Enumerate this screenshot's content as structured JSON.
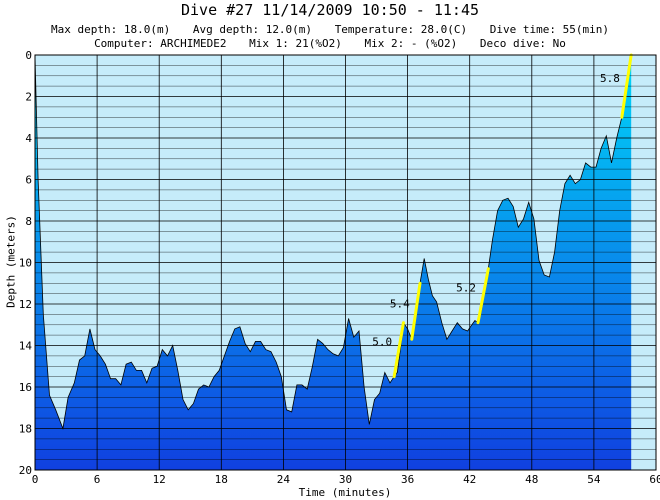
{
  "header": {
    "title": "Dive #27  11/14/2009  10:50 - 11:45",
    "max_depth": "Max depth: 18.0(m)",
    "avg_depth": "Avg depth: 12.0(m)",
    "temperature": "Temperature: 28.0(C)",
    "dive_time": "Dive time: 55(min)",
    "computer": "Computer: ARCHIMEDE2",
    "mix1": "Mix 1: 21(%O2)",
    "mix2": "Mix 2: - (%O2)",
    "deco": "Deco dive:  No"
  },
  "chart_data": {
    "type": "area",
    "xlabel": "Time (minutes)",
    "ylabel": "Depth (meters)",
    "xlim": [
      0,
      60
    ],
    "ylim": [
      0,
      20
    ],
    "y_inverted": true,
    "xticks": [
      0,
      6,
      12,
      18,
      24,
      30,
      36,
      42,
      48,
      54,
      60
    ],
    "yticks": [
      0,
      2,
      4,
      6,
      8,
      10,
      12,
      14,
      16,
      18,
      20
    ],
    "grid": true,
    "colors": {
      "background": "#c6ecfa",
      "profile_top": "#00d8f8",
      "profile_bottom": "#1040e0",
      "ascent_warning": "#ffff00",
      "grid": "#000000"
    },
    "profile": [
      [
        0,
        0
      ],
      [
        0.3,
        6
      ],
      [
        0.8,
        12.5
      ],
      [
        1.4,
        16.4
      ],
      [
        2,
        17.1
      ],
      [
        2.7,
        18
      ],
      [
        3.2,
        16.5
      ],
      [
        3.8,
        15.8
      ],
      [
        4.3,
        14.7
      ],
      [
        4.8,
        14.5
      ],
      [
        5.3,
        13.2
      ],
      [
        5.8,
        14.2
      ],
      [
        6.3,
        14.5
      ],
      [
        6.8,
        14.9
      ],
      [
        7.3,
        15.6
      ],
      [
        7.8,
        15.6
      ],
      [
        8.3,
        15.9
      ],
      [
        8.8,
        14.9
      ],
      [
        9.3,
        14.8
      ],
      [
        9.8,
        15.2
      ],
      [
        10.3,
        15.2
      ],
      [
        10.8,
        15.8
      ],
      [
        11.3,
        15.1
      ],
      [
        11.8,
        15
      ],
      [
        12.3,
        14.2
      ],
      [
        12.8,
        14.5
      ],
      [
        13.3,
        14
      ],
      [
        13.8,
        15.2
      ],
      [
        14.3,
        16.6
      ],
      [
        14.8,
        17.1
      ],
      [
        15.3,
        16.8
      ],
      [
        15.8,
        16.1
      ],
      [
        16.3,
        15.9
      ],
      [
        16.8,
        16
      ],
      [
        17.3,
        15.5
      ],
      [
        17.8,
        15.2
      ],
      [
        18.3,
        14.5
      ],
      [
        18.8,
        13.8
      ],
      [
        19.3,
        13.2
      ],
      [
        19.8,
        13.1
      ],
      [
        20.3,
        13.9
      ],
      [
        20.8,
        14.3
      ],
      [
        21.3,
        13.8
      ],
      [
        21.8,
        13.8
      ],
      [
        22.3,
        14.2
      ],
      [
        22.8,
        14.3
      ],
      [
        23.3,
        14.8
      ],
      [
        23.8,
        15.5
      ],
      [
        24.3,
        17.1
      ],
      [
        24.8,
        17.2
      ],
      [
        25.3,
        15.9
      ],
      [
        25.8,
        15.9
      ],
      [
        26.3,
        16.1
      ],
      [
        26.8,
        15
      ],
      [
        27.3,
        13.7
      ],
      [
        27.8,
        13.9
      ],
      [
        28.3,
        14.2
      ],
      [
        28.8,
        14.4
      ],
      [
        29.3,
        14.5
      ],
      [
        29.8,
        14.1
      ],
      [
        30.3,
        12.7
      ],
      [
        30.8,
        13.6
      ],
      [
        31.3,
        13.3
      ],
      [
        31.8,
        16
      ],
      [
        32.3,
        17.8
      ],
      [
        32.8,
        16.6
      ],
      [
        33.3,
        16.3
      ],
      [
        33.8,
        15.3
      ],
      [
        34.3,
        15.8
      ],
      [
        34.7,
        15.5
      ],
      [
        35,
        15.3
      ],
      [
        35.3,
        14.2
      ],
      [
        35.6,
        12.9
      ],
      [
        36,
        13.2
      ],
      [
        36.4,
        13.7
      ],
      [
        36.8,
        12.5
      ],
      [
        37.2,
        11
      ],
      [
        37.6,
        9.8
      ],
      [
        38,
        10.8
      ],
      [
        38.4,
        11.6
      ],
      [
        38.8,
        11.9
      ],
      [
        39.3,
        12.9
      ],
      [
        39.8,
        13.7
      ],
      [
        40.3,
        13.3
      ],
      [
        40.8,
        12.9
      ],
      [
        41.3,
        13.2
      ],
      [
        41.8,
        13.3
      ],
      [
        42.2,
        13
      ],
      [
        42.5,
        12.8
      ],
      [
        42.8,
        12.9
      ],
      [
        43.1,
        12.4
      ],
      [
        43.4,
        11.5
      ],
      [
        43.8,
        10.3
      ],
      [
        44.2,
        8.9
      ],
      [
        44.7,
        7.5
      ],
      [
        45.2,
        7
      ],
      [
        45.7,
        6.9
      ],
      [
        46.2,
        7.3
      ],
      [
        46.7,
        8.3
      ],
      [
        47.2,
        7.9
      ],
      [
        47.7,
        7.1
      ],
      [
        48.2,
        7.9
      ],
      [
        48.7,
        9.9
      ],
      [
        49.2,
        10.6
      ],
      [
        49.7,
        10.7
      ],
      [
        50.2,
        9.5
      ],
      [
        50.7,
        7.5
      ],
      [
        51.2,
        6.2
      ],
      [
        51.7,
        5.8
      ],
      [
        52.2,
        6.2
      ],
      [
        52.7,
        6
      ],
      [
        53.2,
        5.2
      ],
      [
        53.7,
        5.4
      ],
      [
        54.2,
        5.4
      ],
      [
        54.7,
        4.5
      ],
      [
        55.2,
        3.9
      ],
      [
        55.7,
        5.2
      ],
      [
        56.2,
        4
      ],
      [
        56.7,
        3
      ],
      [
        57,
        2
      ],
      [
        57.3,
        1
      ],
      [
        57.6,
        0
      ]
    ],
    "ascent_warnings": [
      {
        "label": "5.0",
        "from": [
          34.7,
          15.5
        ],
        "to": [
          35.6,
          12.9
        ]
      },
      {
        "label": "5.4",
        "from": [
          36.4,
          13.7
        ],
        "to": [
          37.2,
          11
        ]
      },
      {
        "label": "5.2",
        "from": [
          42.8,
          12.9
        ],
        "to": [
          43.8,
          10.3
        ]
      },
      {
        "label": "5.8",
        "from": [
          56.7,
          3
        ],
        "to": [
          57.6,
          0
        ]
      }
    ]
  }
}
